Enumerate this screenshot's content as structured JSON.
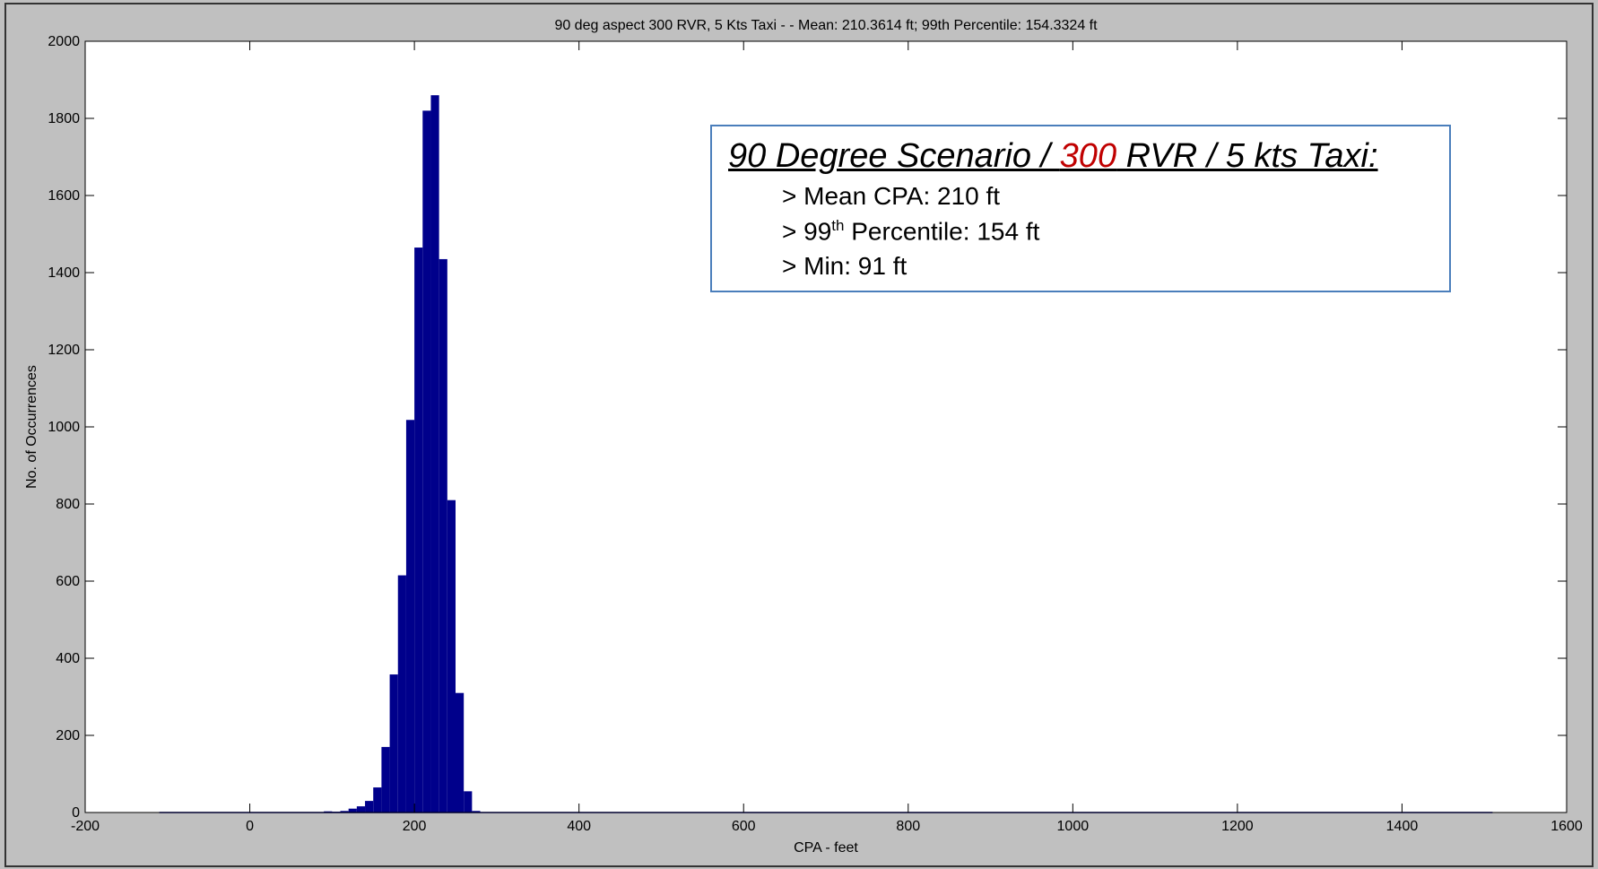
{
  "chart_data": {
    "type": "bar",
    "title": "90 deg aspect 300 RVR, 5 Kts Taxi - - Mean: 210.3614 ft; 99th Percentile: 154.3324 ft",
    "xlabel": "CPA - feet",
    "ylabel": "No. of Occurrences",
    "xlim": [
      -200,
      1600
    ],
    "ylim": [
      0,
      2000
    ],
    "x_ticks": [
      -200,
      0,
      200,
      400,
      600,
      800,
      1000,
      1200,
      1400,
      1600
    ],
    "y_ticks": [
      0,
      200,
      400,
      600,
      800,
      1000,
      1200,
      1400,
      1600,
      1800,
      2000
    ],
    "bin_width": 10,
    "bin_centers": [
      95,
      105,
      115,
      125,
      135,
      145,
      155,
      165,
      175,
      185,
      195,
      205,
      215,
      225,
      235,
      245,
      255,
      265,
      275
    ],
    "values": [
      3,
      2,
      4,
      10,
      16,
      30,
      65,
      170,
      358,
      615,
      1018,
      1465,
      1820,
      1860,
      1435,
      810,
      310,
      55,
      4
    ],
    "baseline_range": [
      -110,
      1510
    ],
    "bar_color": "#00008b",
    "axis_background": "#ffffff",
    "figure_background": "#c0c0c0",
    "grid": false,
    "annotation": {
      "title_pre": "90 Degree Scenario / ",
      "title_highlight": "300",
      "title_post": " RVR / 5 kts Taxi:",
      "highlight_color": "#c00000",
      "line1": "> Mean CPA: 210 ft",
      "line2_prefix": "> 99",
      "line2_sup": "th",
      "line2_suffix": " Percentile: 154 ft",
      "line3": "> Min: 91 ft"
    }
  }
}
